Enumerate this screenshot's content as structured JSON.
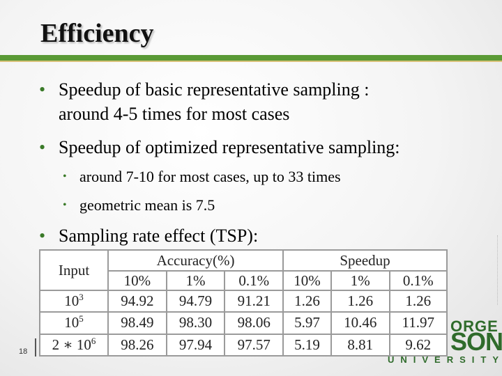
{
  "slide": {
    "title": "Efficiency",
    "bullets": [
      {
        "line1": "Speedup of basic representative sampling :",
        "line2": "around 4-5 times for most cases"
      },
      {
        "line1": "Speedup of optimized representative sampling:"
      }
    ],
    "sub_bullets": [
      "around 7-10 for most cases, up to 33 times",
      "geometric mean is 7.5"
    ],
    "bullet3": "Sampling rate effect (TSP):",
    "bullet_glyph": "•",
    "slide_number": "18"
  },
  "table": {
    "input_header": "Input",
    "accuracy_header": "Accuracy(%)",
    "speedup_header": "Speedup",
    "sub_headers": [
      "10%",
      "1%",
      "0.1%",
      "10%",
      "1%",
      "0.1%"
    ],
    "rows": [
      {
        "input_base": "10",
        "input_exp": "3",
        "cells": [
          "94.92",
          "94.79",
          "91.21",
          "1.26",
          "1.26",
          "1.26"
        ]
      },
      {
        "input_base": "10",
        "input_exp": "5",
        "cells": [
          "98.49",
          "98.30",
          "98.06",
          "5.97",
          "10.46",
          "11.97"
        ]
      },
      {
        "input_base": "2 ∗ 10",
        "input_exp": "6",
        "cells": [
          "98.26",
          "97.94",
          "97.57",
          "5.19",
          "8.81",
          "9.62"
        ]
      }
    ]
  },
  "logo": {
    "top": "ORGE",
    "middle": "SON",
    "bottom": "UNIVERSITY",
    "color": "#2f6b2b"
  },
  "colors": {
    "accent_green": "#5a9a35",
    "accent_gold": "#d9c27a"
  }
}
